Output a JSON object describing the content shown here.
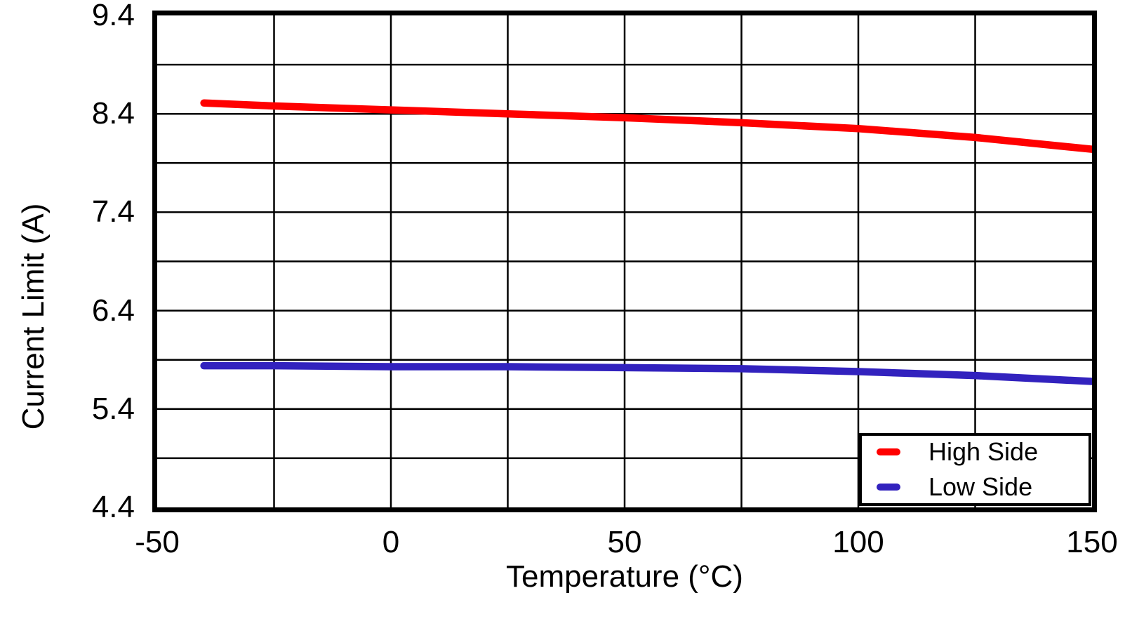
{
  "page": {
    "background_color": "#FFFFFF",
    "axis_color": "#000000",
    "grid_color": "#000000"
  },
  "chart_data": {
    "type": "line",
    "title": "",
    "xlabel": "Temperature (°C)",
    "ylabel": "Current Limit (A)",
    "xlim": [
      -50,
      150
    ],
    "ylim": [
      4.4,
      9.4
    ],
    "x_tick_values": [
      -50,
      0,
      50,
      100,
      150
    ],
    "x_tick_labels": [
      "-50",
      "0",
      "50",
      "100",
      "150"
    ],
    "y_tick_values": [
      9.4,
      8.4,
      7.4,
      6.4,
      5.4,
      4.4
    ],
    "y_tick_labels": [
      "9.4",
      "8.4",
      "7.4",
      "6.4",
      "5.4",
      "4.4"
    ],
    "x_gridline_step": 25,
    "y_gridline_step": 0.5,
    "grid": true,
    "legend_position": "lower right",
    "x": [
      -40,
      -25,
      0,
      25,
      50,
      75,
      100,
      125,
      150
    ],
    "series": [
      {
        "name": "High Side",
        "color": "#FF0000",
        "values": [
          8.51,
          8.48,
          8.44,
          8.4,
          8.36,
          8.31,
          8.25,
          8.16,
          8.04
        ]
      },
      {
        "name": "Low Side",
        "color": "#3222BE",
        "values": [
          5.84,
          5.84,
          5.83,
          5.83,
          5.82,
          5.81,
          5.78,
          5.74,
          5.68
        ]
      }
    ]
  }
}
